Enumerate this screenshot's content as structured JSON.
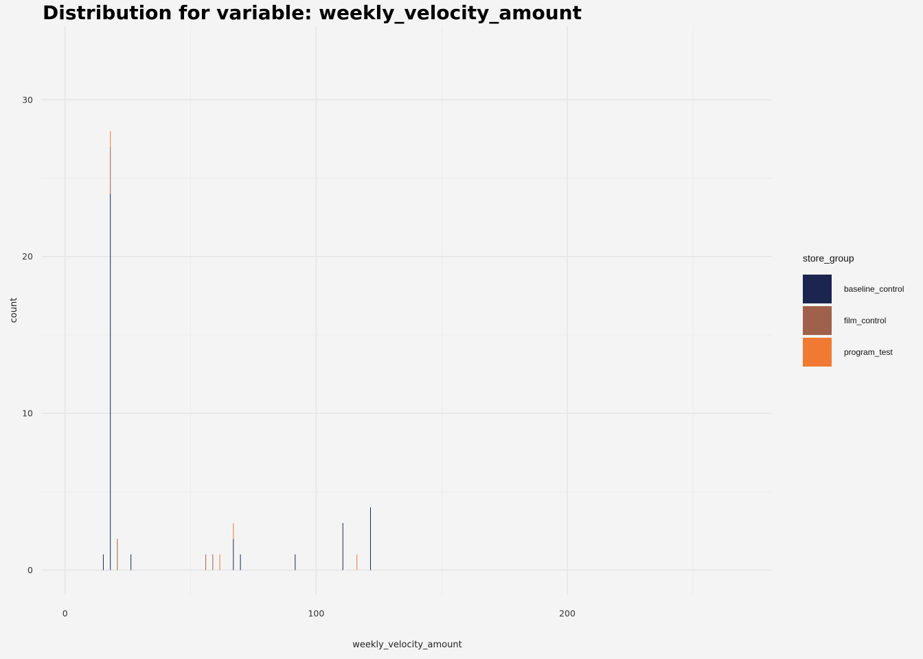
{
  "chart_data": {
    "type": "bar",
    "title": "Distribution for variable: weekly_velocity_amount",
    "xlabel": "weekly_velocity_amount",
    "ylabel": "count",
    "xlim": [
      -9.5,
      281.5
    ],
    "ylim": [
      -1.6,
      34.7
    ],
    "x_ticks": [
      0,
      100,
      200
    ],
    "y_ticks": [
      0,
      10,
      20,
      30
    ],
    "grid": true,
    "legend_title": "store_group",
    "legend_position": "right",
    "series": [
      {
        "name": "baseline_control",
        "color": "#1b2550",
        "bins": [
          {
            "x": 15.2,
            "count": 1
          },
          {
            "x": 18.0,
            "count": 24
          },
          {
            "x": 26.2,
            "count": 1
          },
          {
            "x": 67.0,
            "count": 2
          },
          {
            "x": 69.8,
            "count": 1
          },
          {
            "x": 91.6,
            "count": 1
          },
          {
            "x": 110.6,
            "count": 3
          },
          {
            "x": 121.6,
            "count": 4
          }
        ]
      },
      {
        "name": "film_control",
        "color": "#a0614c",
        "bins": [
          {
            "x": 18.0,
            "count": 3
          },
          {
            "x": 20.8,
            "count": 2
          },
          {
            "x": 56.0,
            "count": 1
          },
          {
            "x": 58.8,
            "count": 1
          }
        ]
      },
      {
        "name": "program_test",
        "color": "#f07a32",
        "bins": [
          {
            "x": 18.0,
            "count": 1
          },
          {
            "x": 61.6,
            "count": 1
          },
          {
            "x": 67.0,
            "count": 1
          },
          {
            "x": 116.2,
            "count": 1
          }
        ]
      }
    ]
  }
}
